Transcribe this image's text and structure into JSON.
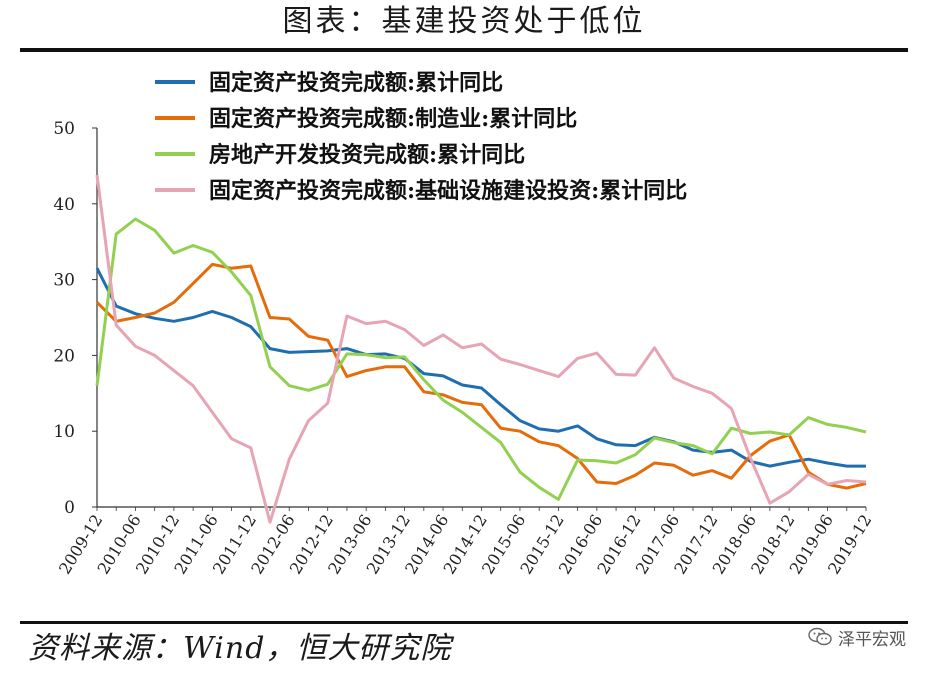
{
  "figure": {
    "title": "图表：基建投资处于低位",
    "source": "资料来源：Wind，恒大研究院",
    "watermark": "泽平宏观"
  },
  "chart_data": {
    "type": "line",
    "title": "",
    "xlabel": "",
    "ylabel": "",
    "ylim": [
      0,
      50
    ],
    "yticks": [
      0,
      10,
      20,
      30,
      40,
      50
    ],
    "grid": false,
    "legend_position": "top",
    "x": [
      "2009-12",
      "2010-03",
      "2010-06",
      "2010-09",
      "2010-12",
      "2011-03",
      "2011-06",
      "2011-09",
      "2011-12",
      "2012-03",
      "2012-06",
      "2012-09",
      "2012-12",
      "2013-03",
      "2013-06",
      "2013-09",
      "2013-12",
      "2014-03",
      "2014-06",
      "2014-09",
      "2014-12",
      "2015-03",
      "2015-06",
      "2015-09",
      "2015-12",
      "2016-03",
      "2016-06",
      "2016-09",
      "2016-12",
      "2017-03",
      "2017-06",
      "2017-09",
      "2017-12",
      "2018-03",
      "2018-06",
      "2018-09",
      "2018-12",
      "2019-03",
      "2019-06",
      "2019-09",
      "2019-12"
    ],
    "x_tick_labels": [
      "2009-12",
      "2010-06",
      "2010-12",
      "2011-06",
      "2011-12",
      "2012-06",
      "2012-12",
      "2013-06",
      "2013-12",
      "2014-06",
      "2014-12",
      "2015-06",
      "2015-12",
      "2016-06",
      "2016-12",
      "2017-06",
      "2017-12",
      "2018-06",
      "2018-12",
      "2019-06",
      "2019-12"
    ],
    "series": [
      {
        "name": "固定资产投资完成额:累计同比",
        "color": "#1f6eb0",
        "values": [
          31.5,
          26.5,
          25.5,
          24.9,
          24.5,
          25.0,
          25.8,
          25.0,
          23.8,
          20.9,
          20.4,
          20.5,
          20.6,
          20.9,
          20.1,
          20.2,
          19.6,
          17.6,
          17.3,
          16.1,
          15.7,
          13.5,
          11.4,
          10.3,
          10.0,
          10.7,
          9.0,
          8.2,
          8.1,
          9.2,
          8.6,
          7.5,
          7.2,
          7.5,
          6.0,
          5.4,
          5.9,
          6.3,
          5.8,
          5.4,
          5.4
        ]
      },
      {
        "name": "固定资产投资完成额:制造业:累计同比",
        "color": "#e46c0a",
        "values": [
          27.0,
          24.5,
          25.0,
          25.6,
          27.0,
          29.5,
          32.0,
          31.5,
          31.8,
          25.0,
          24.8,
          22.5,
          22.0,
          17.2,
          18.0,
          18.5,
          18.5,
          15.2,
          14.8,
          13.8,
          13.5,
          10.4,
          10.0,
          8.6,
          8.1,
          6.4,
          3.3,
          3.1,
          4.2,
          5.8,
          5.5,
          4.2,
          4.8,
          3.8,
          6.8,
          8.7,
          9.5,
          4.6,
          3.0,
          2.5,
          3.1
        ]
      },
      {
        "name": "房地产开发投资完成额:累计同比",
        "color": "#92d050",
        "values": [
          16.0,
          36.0,
          38.0,
          36.5,
          33.5,
          34.5,
          33.6,
          31.0,
          27.9,
          18.5,
          16.0,
          15.4,
          16.2,
          20.2,
          20.1,
          19.7,
          19.8,
          16.8,
          14.1,
          12.5,
          10.5,
          8.5,
          4.6,
          2.6,
          1.0,
          6.2,
          6.1,
          5.8,
          6.9,
          9.1,
          8.5,
          8.1,
          7.0,
          10.4,
          9.7,
          9.9,
          9.5,
          11.8,
          10.9,
          10.5,
          9.9
        ]
      },
      {
        "name": "固定资产投资完成额:基础设施建设投资:累计同比",
        "color": "#e6a4b4",
        "values": [
          43.8,
          24.0,
          21.2,
          20.0,
          18.0,
          16.0,
          12.5,
          9.0,
          7.8,
          -2.0,
          6.3,
          11.4,
          13.7,
          25.2,
          24.2,
          24.5,
          23.4,
          21.3,
          22.7,
          21.0,
          21.5,
          19.5,
          18.8,
          18.0,
          17.2,
          19.6,
          20.3,
          17.5,
          17.4,
          21.0,
          17.0,
          15.9,
          15.0,
          13.0,
          6.4,
          0.5,
          2.0,
          4.3,
          3.0,
          3.5,
          3.3
        ]
      }
    ]
  }
}
